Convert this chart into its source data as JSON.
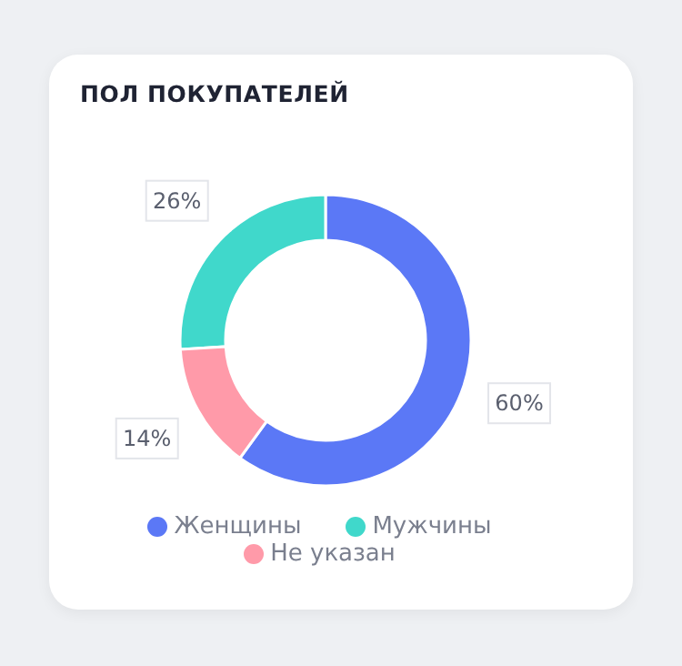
{
  "chart_data": {
    "type": "donut",
    "title": "ПОЛ ПОКУПАТЕЛЕЙ",
    "categories": [
      "Женщины",
      "Мужчины",
      "Не указан"
    ],
    "values": [
      60,
      26,
      14
    ],
    "colors": [
      "#5b78f6",
      "#40d8cb",
      "#ff9aa9"
    ],
    "value_labels": [
      "60%",
      "26%",
      "14%"
    ],
    "legend": "bottom"
  }
}
